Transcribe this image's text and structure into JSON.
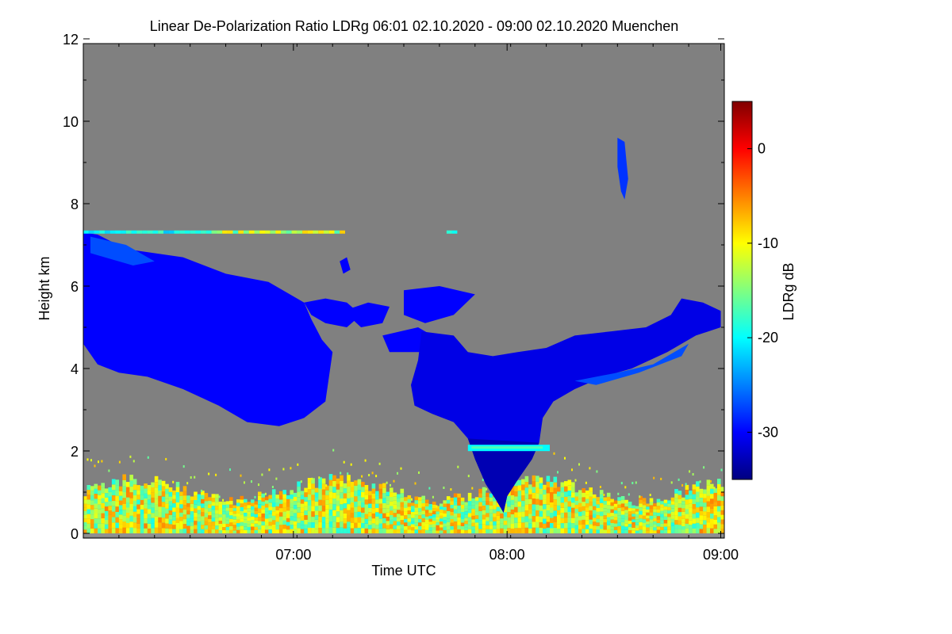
{
  "chart_data": {
    "type": "heatmap",
    "title": "Linear De-Polarization Ratio LDRg   06:01 02.10.2020 - 09:00 02.10.2020 Muenchen",
    "xlabel": "Time UTC",
    "ylabel": "Height km",
    "xlim": [
      "06:01",
      "09:00"
    ],
    "ylim": [
      0,
      12
    ],
    "x_ticks": [
      {
        "v": 59,
        "label": "07:00"
      },
      {
        "v": 119,
        "label": "08:00"
      },
      {
        "v": 179,
        "label": "09:00"
      }
    ],
    "y_ticks": [
      0,
      2,
      4,
      6,
      8,
      10,
      12
    ],
    "colorbar": {
      "label": "LDRg dB",
      "range": [
        -35,
        5
      ],
      "ticks": [
        0,
        -10,
        -20,
        -30
      ],
      "colormap": [
        "#000080",
        "#0000ff",
        "#0080ff",
        "#00ffff",
        "#80ff80",
        "#ffff00",
        "#ff8000",
        "#ff0000",
        "#800000"
      ]
    },
    "background_color": "#808080",
    "features": [
      {
        "name": "cloud layer descending",
        "time_min": [
          0,
          70
        ],
        "height_km": [
          2.6,
          7.3
        ],
        "ldr_db": -30
      },
      {
        "name": "mid cloud patches",
        "time_min": [
          60,
          110
        ],
        "height_km": [
          4.3,
          6.1
        ],
        "ldr_db": -30
      },
      {
        "name": "main cloud with fall streak",
        "time_min": [
          95,
          179
        ],
        "height_km": [
          0.4,
          5.7
        ],
        "ldr_db": -31
      },
      {
        "name": "cirrus trace",
        "time_min": [
          150,
          153
        ],
        "height_km": [
          8.1,
          9.6
        ],
        "ldr_db": -28
      },
      {
        "name": "thin layer at 7.3 km",
        "time_min": [
          0,
          105
        ],
        "height_km": [
          7.25,
          7.35
        ],
        "ldr_db": -15
      },
      {
        "name": "melting layer",
        "time_min": [
          108,
          131
        ],
        "height_km": [
          2.0,
          2.15
        ],
        "ldr_db": -20
      },
      {
        "name": "boundary layer aerosol",
        "time_min": [
          0,
          179
        ],
        "height_km": [
          0,
          1.6
        ],
        "ldr_db": -12
      }
    ]
  }
}
